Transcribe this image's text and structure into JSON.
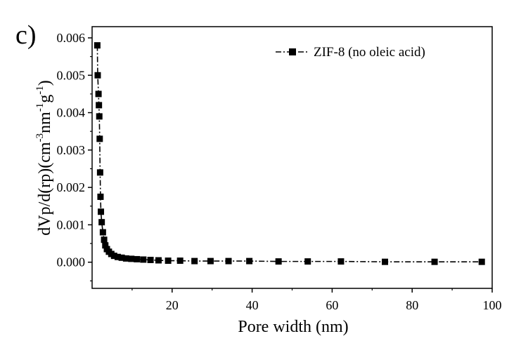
{
  "chart_data": {
    "type": "scatter",
    "panel_label": "c)",
    "xlabel": "Pore width (nm)",
    "ylabel": {
      "main": "dVp/d(rp)(cm",
      "exp1": "-3",
      "mid1": "nm",
      "exp2": "-1",
      "mid2": "g",
      "exp3": "-1",
      "end": ")"
    },
    "xlim": [
      0,
      100
    ],
    "ylim": [
      -0.0007,
      0.0063
    ],
    "x_ticks": [
      20,
      40,
      60,
      80,
      100
    ],
    "y_ticks": [
      0.0,
      0.001,
      0.002,
      0.003,
      0.004,
      0.005,
      0.006
    ],
    "x_tick_labels": [
      "20",
      "40",
      "60",
      "80",
      "100"
    ],
    "y_tick_labels": [
      "0.000",
      "0.001",
      "0.002",
      "0.003",
      "0.004",
      "0.005",
      "0.006"
    ],
    "grid": false,
    "legend_position": "top-right",
    "series": [
      {
        "name": "ZIF-8 (no oleic acid)",
        "color": "#000000",
        "marker": "square",
        "line_style": "dash-dot",
        "x": [
          1.3,
          1.4,
          1.6,
          1.7,
          1.8,
          1.9,
          2.0,
          2.1,
          2.2,
          2.4,
          2.7,
          3.0,
          3.3,
          3.7,
          4.2,
          4.8,
          5.5,
          6.4,
          7.4,
          8.5,
          9.8,
          11.2,
          12.8,
          14.6,
          16.6,
          19.0,
          22.0,
          25.6,
          29.6,
          34.1,
          39.3,
          46.6,
          53.9,
          62.2,
          73.2,
          85.6,
          97.4
        ],
        "y": [
          0.0058,
          0.005,
          0.0045,
          0.0042,
          0.0039,
          0.0033,
          0.0024,
          0.00175,
          0.00135,
          0.00107,
          0.0008,
          0.0006,
          0.00045,
          0.00035,
          0.00028,
          0.00022,
          0.00017,
          0.00014,
          0.00012,
          0.0001,
          9e-05,
          8e-05,
          7e-05,
          6e-05,
          5e-05,
          4e-05,
          4e-05,
          3e-05,
          3e-05,
          3e-05,
          3e-05,
          2e-05,
          2e-05,
          2e-05,
          1e-05,
          1e-05,
          1e-05
        ]
      }
    ]
  }
}
